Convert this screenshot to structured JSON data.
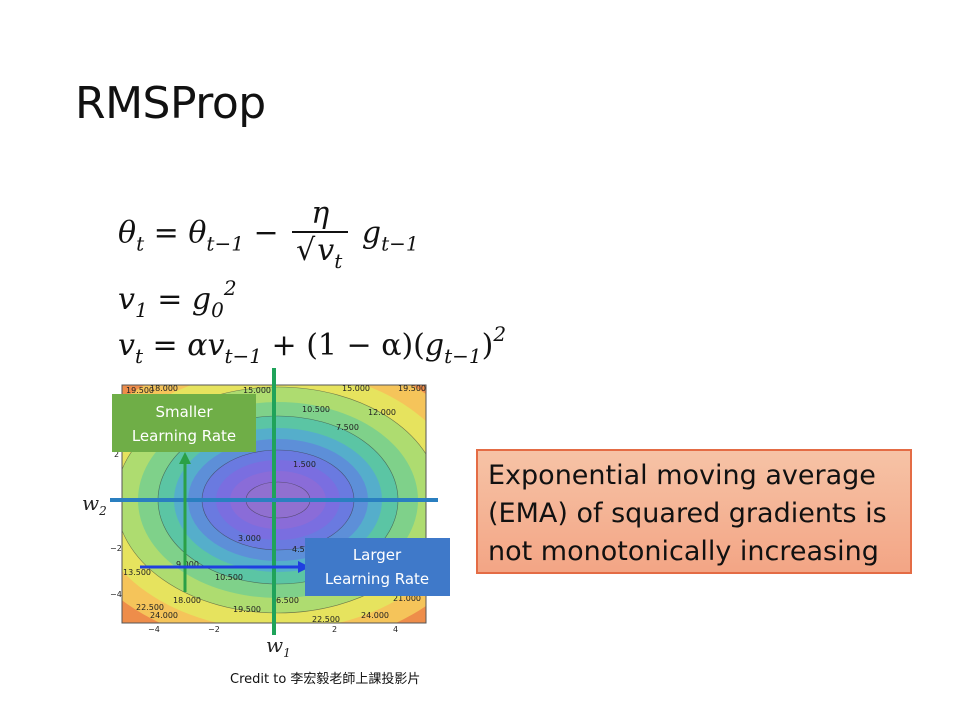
{
  "slide": {
    "title": "RMSProp",
    "equation_box": {
      "line1": {
        "lhs": "θ",
        "lhs_sub": "t",
        "eq": "=",
        "term": "θ",
        "term_sub": "t−1",
        "minus": "−",
        "numerator": "η",
        "den_var": "v",
        "den_sub": "t",
        "g": "g",
        "g_sub": "t−1"
      },
      "line2": {
        "lhs": "v",
        "lhs_sub": "1",
        "eq": "=",
        "g": "g",
        "g_sub": "0",
        "sup": "2"
      },
      "line3": {
        "lhs": "v",
        "lhs_sub": "t",
        "eq": "=",
        "alpha": "α",
        "v": "v",
        "v_sub": "t−1",
        "plus": "+",
        "paren": "(1 − α)(",
        "g": "g",
        "g_sub": "t−1",
        "close": ")",
        "sup": "2"
      }
    },
    "ema_note": "Exponential moving average (EMA) of squared gradients is not monotonically increasing",
    "credit": "Credit to 李宏毅老師上課投影片",
    "figure": {
      "smaller_label": "Smaller Learning Rate",
      "larger_label": "Larger Learning Rate",
      "w1_label": "w",
      "w1_sub": "1",
      "w2_label": "w",
      "w2_sub": "2",
      "contour_labels": [
        "19.500",
        "18.000",
        "15.000",
        "10.500",
        "12.000",
        "7.500",
        "1.500",
        "3.000",
        "4.5",
        "9.000",
        "13.500",
        "10.500",
        "18.000",
        "6.500",
        "22.500",
        "24.000",
        "19.500",
        "21.000",
        "22.500",
        "24.000",
        "15.000",
        "19.500"
      ],
      "x_ticks": [
        "−4",
        "−2",
        "2",
        "4"
      ],
      "y_ticks": [
        "2",
        "−2",
        "−4"
      ]
    },
    "colors": {
      "green_box": "#6fae47",
      "blue_box": "#3f79c9",
      "ema_border": "#e46c45",
      "crosshair_green": "#1fa35a",
      "crosshair_blue": "#2a7fc0"
    }
  }
}
